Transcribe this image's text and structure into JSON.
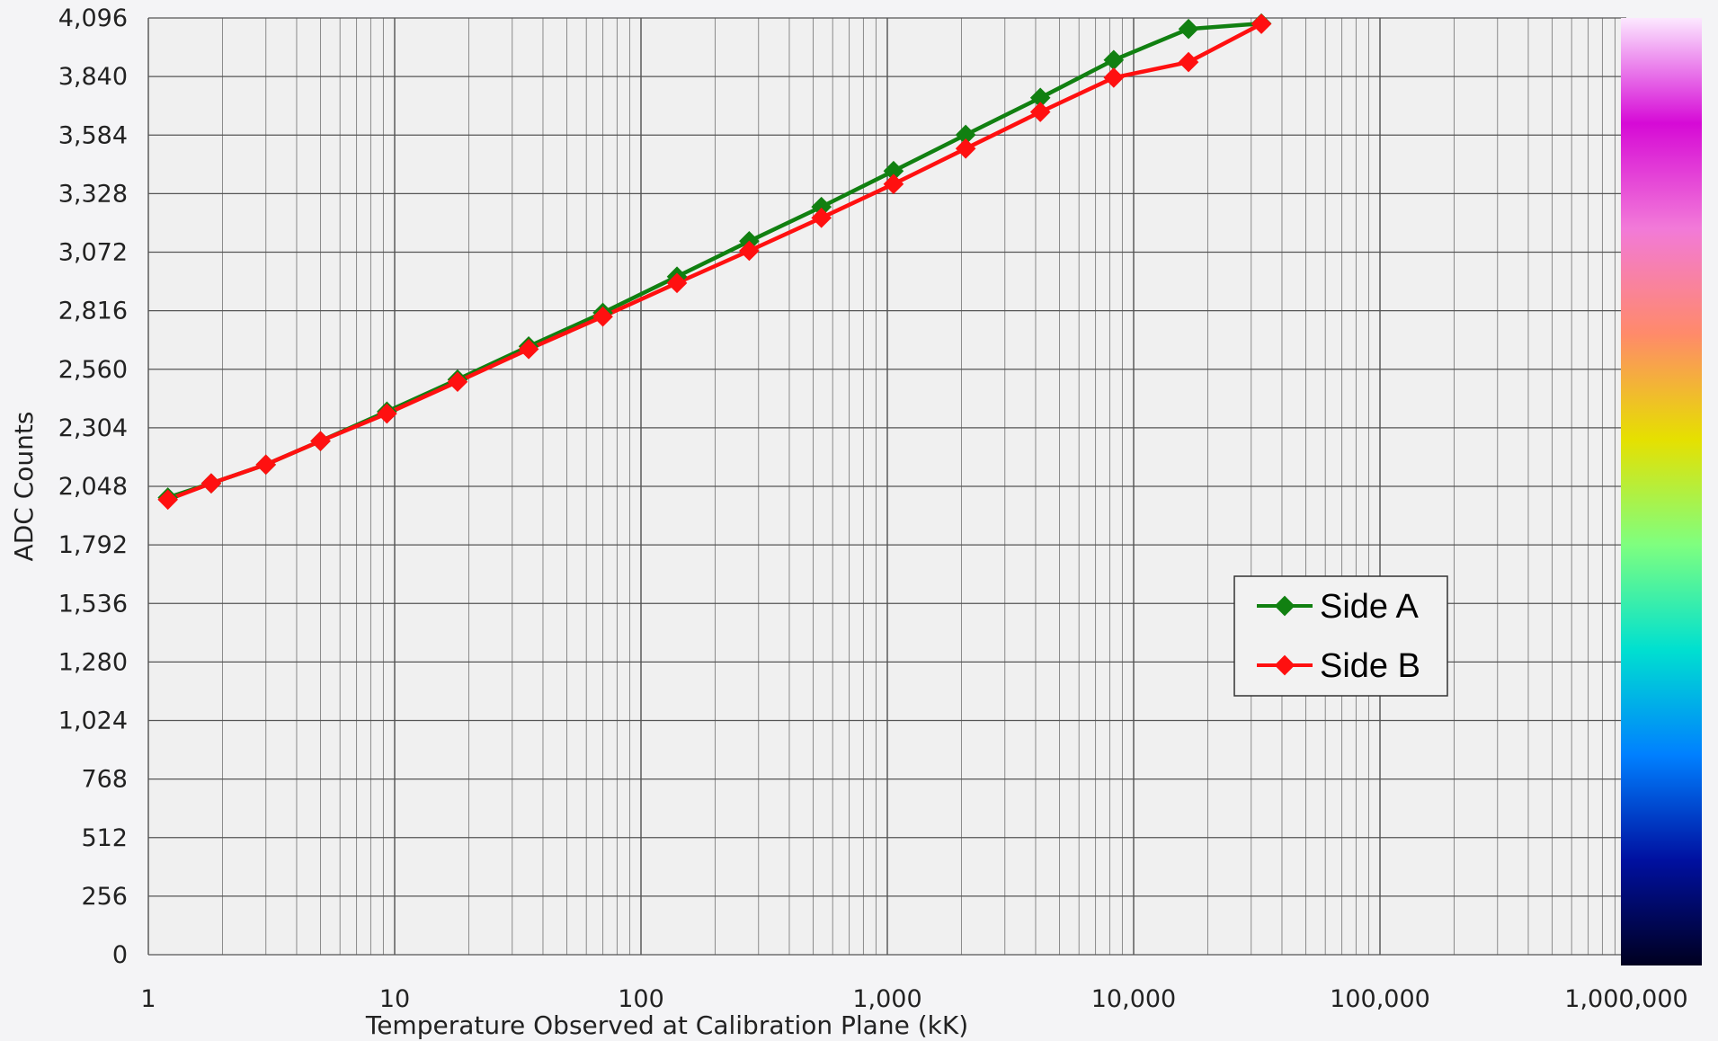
{
  "chart_data": {
    "type": "line",
    "xlabel": "Temperature Observed at Calibration Plane (kK)",
    "ylabel": "ADC Counts",
    "x_scale": "log",
    "xlim": [
      1,
      1000000
    ],
    "ylim": [
      0,
      4096
    ],
    "x_ticks": [
      1,
      10,
      100,
      1000,
      10000,
      100000,
      1000000
    ],
    "x_tick_labels": [
      "1",
      "10",
      "100",
      "1,000",
      "10,000",
      "100,000",
      "1,000,000"
    ],
    "y_ticks": [
      0,
      256,
      512,
      768,
      1024,
      1280,
      1536,
      1792,
      2048,
      2304,
      2560,
      2816,
      3072,
      3328,
      3584,
      3840,
      4096
    ],
    "y_tick_labels": [
      "0",
      "256",
      "512",
      "768",
      "1,024",
      "1,280",
      "1,536",
      "1,792",
      "2,048",
      "2,304",
      "2,560",
      "2,816",
      "3,072",
      "3,328",
      "3,584",
      "3,840",
      "4,096"
    ],
    "grid": true,
    "legend_position": "right",
    "colorbar": {
      "position": "right",
      "stops": [
        "#fce8ff",
        "#d60ad6",
        "#f27ad8",
        "#ff8a6a",
        "#e6e000",
        "#7fff7f",
        "#00e0d0",
        "#0080ff",
        "#0010a0",
        "#000020"
      ]
    },
    "series": [
      {
        "name": "Side A",
        "color": "#118011",
        "x": [
          1.2,
          1.8,
          3,
          5,
          9.3,
          18,
          35,
          70,
          140,
          275,
          540,
          1060,
          2080,
          4180,
          8300,
          16700,
          33000
        ],
        "y": [
          1999,
          2061,
          2143,
          2246,
          2375,
          2515,
          2660,
          2807,
          2965,
          3120,
          3270,
          3427,
          3585,
          3747,
          3912,
          4048,
          4072
        ]
      },
      {
        "name": "Side B",
        "color": "#ff1010",
        "x": [
          1.2,
          1.8,
          3,
          5,
          9.3,
          18,
          35,
          70,
          140,
          275,
          540,
          1060,
          2080,
          4180,
          8300,
          16700,
          33000
        ],
        "y": [
          1990,
          2061,
          2143,
          2246,
          2366,
          2505,
          2648,
          2790,
          2937,
          3078,
          3222,
          3370,
          3525,
          3685,
          3835,
          3903,
          4070
        ]
      }
    ]
  }
}
